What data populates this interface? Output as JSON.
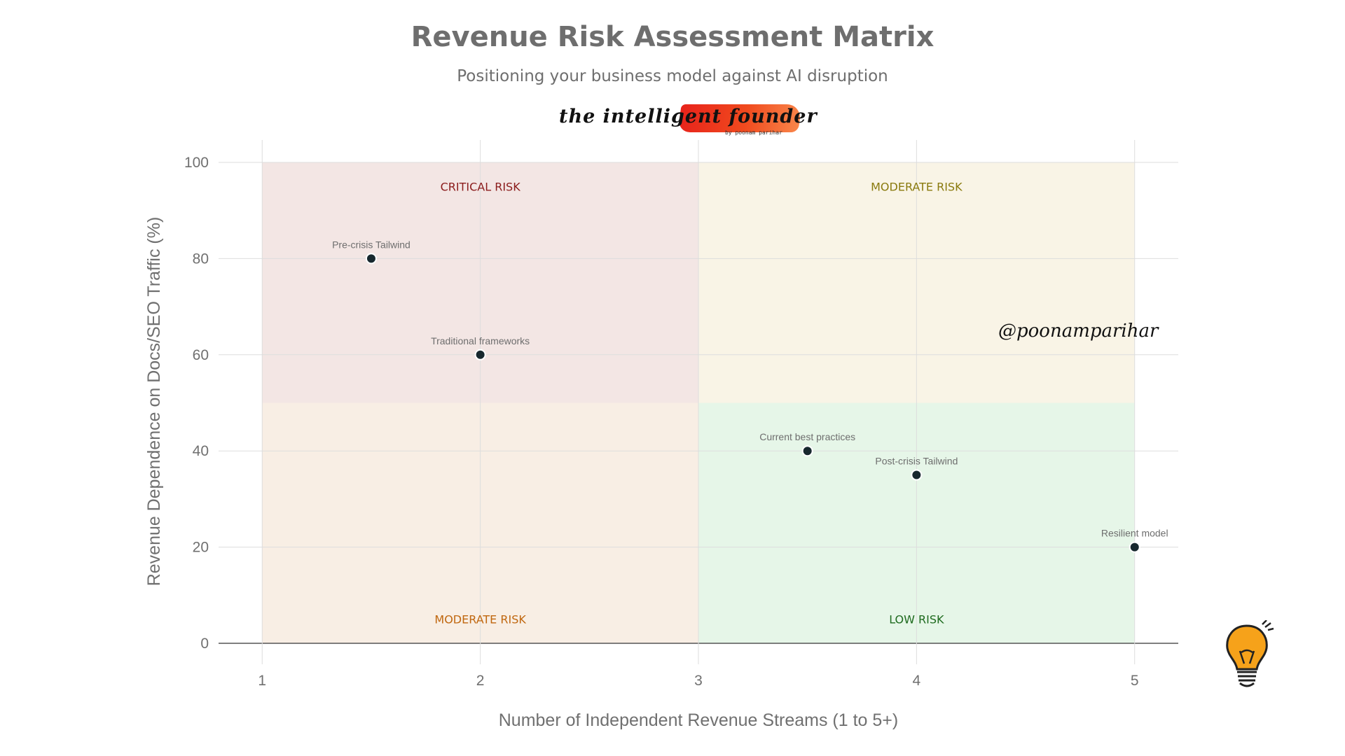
{
  "chart_data": {
    "type": "scatter",
    "title": "Revenue Risk Assessment Matrix",
    "subtitle": "Positioning your business model against AI disruption",
    "xlabel": "Number of Independent Revenue Streams (1 to 5+)",
    "ylabel": "Revenue Dependence on Docs/SEO Traffic (%)",
    "xlim": [
      0.8,
      5.2
    ],
    "ylim": [
      0,
      100
    ],
    "x_ticks": [
      "1",
      "2",
      "3",
      "4",
      "5"
    ],
    "y_ticks": [
      "0",
      "20",
      "40",
      "60",
      "80",
      "100"
    ],
    "grid": true,
    "points": [
      {
        "label": "Pre-crisis Tailwind",
        "x": 1.5,
        "y": 80
      },
      {
        "label": "Traditional frameworks",
        "x": 2,
        "y": 60
      },
      {
        "label": "Current best practices",
        "x": 3.5,
        "y": 40
      },
      {
        "label": "Post-crisis Tailwind",
        "x": 4,
        "y": 35
      },
      {
        "label": "Resilient model",
        "x": 5,
        "y": 20
      }
    ],
    "quadrants": [
      {
        "label": "CRITICAL RISK",
        "x_range": [
          1,
          3
        ],
        "y_range": [
          50,
          100
        ],
        "fill": "#f3e6e4",
        "text_color": "#8b1c1c",
        "label_x": 2,
        "label_y": 95
      },
      {
        "label": "MODERATE RISK",
        "x_range": [
          3,
          5
        ],
        "y_range": [
          50,
          100
        ],
        "fill": "#f9f4e6",
        "text_color": "#8a7a0e",
        "label_x": 4,
        "label_y": 95
      },
      {
        "label": "MODERATE RISK",
        "x_range": [
          1,
          3
        ],
        "y_range": [
          0,
          50
        ],
        "fill": "#f8eee4",
        "text_color": "#c0670f",
        "label_x": 2,
        "label_y": 5
      },
      {
        "label": "LOW RISK",
        "x_range": [
          3,
          5
        ],
        "y_range": [
          0,
          50
        ],
        "fill": "#e6f6e8",
        "text_color": "#1f6b1f",
        "label_x": 4,
        "label_y": 5
      }
    ],
    "colors": {
      "point": "#17282e",
      "grid": "#dddddd",
      "axis_text": "#707070",
      "point_label": "#6e6e6e"
    }
  },
  "branding": {
    "logo_text": "the intelligent founder",
    "logo_sub": "by poonam parihar",
    "watermark": "@poonamparihar"
  }
}
